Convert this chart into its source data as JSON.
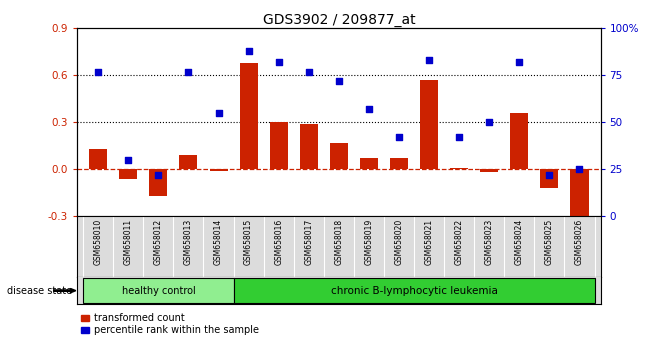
{
  "title": "GDS3902 / 209877_at",
  "samples": [
    "GSM658010",
    "GSM658011",
    "GSM658012",
    "GSM658013",
    "GSM658014",
    "GSM658015",
    "GSM658016",
    "GSM658017",
    "GSM658018",
    "GSM658019",
    "GSM658020",
    "GSM658021",
    "GSM658022",
    "GSM658023",
    "GSM658024",
    "GSM658025",
    "GSM658026"
  ],
  "transformed_count": [
    0.13,
    -0.06,
    -0.17,
    0.09,
    -0.01,
    0.68,
    0.3,
    0.29,
    0.17,
    0.07,
    0.07,
    0.57,
    0.01,
    -0.02,
    0.36,
    -0.12,
    -0.38
  ],
  "percentile_rank": [
    77,
    30,
    22,
    77,
    55,
    88,
    82,
    77,
    72,
    57,
    42,
    83,
    42,
    50,
    82,
    22,
    25
  ],
  "healthy_control_count": 5,
  "disease_state_label": "disease state",
  "group_labels": [
    "healthy control",
    "chronic B-lymphocytic leukemia"
  ],
  "hc_color": "#90EE90",
  "lk_color": "#32CD32",
  "bar_color": "#CC2200",
  "scatter_color": "#0000CC",
  "y_left_ticks": [
    -0.3,
    0.0,
    0.3,
    0.6,
    0.9
  ],
  "y_right_ticks": [
    0,
    25,
    50,
    75,
    100
  ],
  "y_right_labels": [
    "0",
    "25",
    "50",
    "75",
    "100%"
  ],
  "hline_y": [
    0.3,
    0.6
  ],
  "zero_line_color": "#CC2200",
  "dotted_line_color": "#000000",
  "background_color": "#ffffff",
  "label_bg_color": "#DCDCDC",
  "legend_items": [
    "transformed count",
    "percentile rank within the sample"
  ],
  "ylim": [
    -0.3,
    0.9
  ],
  "bar_width": 0.6
}
